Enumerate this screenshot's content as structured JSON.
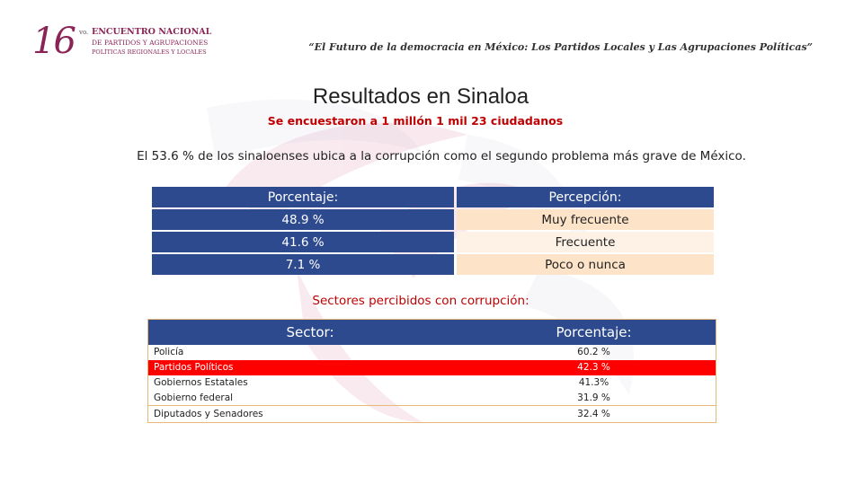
{
  "logo": {
    "number": "16",
    "superscript": "vo.",
    "line1": "ENCUENTRO NACIONAL",
    "line2": "DE PARTIDOS Y AGRUPACIONES",
    "line3": "POLÍTICAS REGIONALES Y LOCALES"
  },
  "header": {
    "title": "“El Futuro de la democracia en México: Los Partidos Locales y Las Agrupaciones Políticas”"
  },
  "main": {
    "title": "Resultados en Sinaloa",
    "subtitle": "Se encuestaron a 1 millón 1 mil 23 ciudadanos",
    "statement": "El 53.6 % de los sinaloenses ubica a la corrupción como el segundo problema más grave de México."
  },
  "perception_table": {
    "headers": [
      "Porcentaje:",
      "Percepción:"
    ],
    "rows": [
      {
        "percent": "48.9 %",
        "perception": "Muy frecuente"
      },
      {
        "percent": "41.6 %",
        "perception": "Frecuente"
      },
      {
        "percent": "7.1 %",
        "perception": "Poco o nunca"
      }
    ]
  },
  "sectors": {
    "heading": "Sectores percibidos con corrupción:",
    "headers": [
      "Sector:",
      "Porcentaje:"
    ],
    "rows": [
      {
        "sector": "Policía",
        "percent": "60.2 %"
      },
      {
        "sector": "Partidos Políticos",
        "percent": "42.3 %"
      },
      {
        "sector": "Gobiernos Estatales",
        "percent": "41.3%"
      },
      {
        "sector": "Gobierno federal",
        "percent": "31.9 %"
      },
      {
        "sector": "Diputados y Senadores",
        "percent": "32.4 %"
      }
    ]
  },
  "colors": {
    "header_blue": "#2e4a8e",
    "accent_red": "#c00000",
    "highlight_red": "#ff0000",
    "brand_maroon": "#8a2456"
  }
}
